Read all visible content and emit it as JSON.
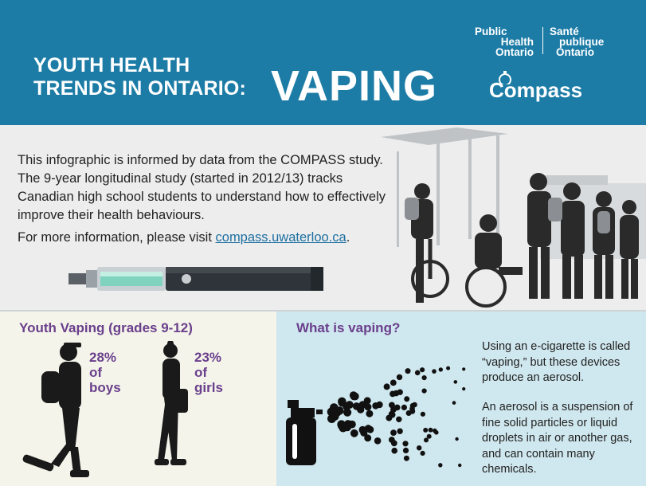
{
  "header": {
    "title_line1": "YOUTH HEALTH",
    "title_line2": "TRENDS IN ONTARIO:",
    "title_big": "VAPING",
    "partner_en": [
      "Public",
      "Health",
      "Ontario"
    ],
    "partner_fr": [
      "Santé",
      "publique",
      "Ontario"
    ],
    "compass": "Compass"
  },
  "intro": {
    "paragraph": "This infographic is informed by data from the COMPASS study. The 9-year longitudinal study (started in 2012/13) tracks Canadian high school students to understand how to effectively improve their health behaviours.",
    "more_prefix": "For more information, please visit ",
    "more_link": "compass.uwaterloo.ca",
    "more_suffix": "."
  },
  "youth": {
    "title": "Youth Vaping (grades 9-12)",
    "boys_pct": "28%",
    "boys_of": "of",
    "boys_label": "boys",
    "girls_pct": "23%",
    "girls_of": "of",
    "girls_label": "girls"
  },
  "what": {
    "title": "What is vaping?",
    "para1": "Using an e-cigarette is called “vaping,” but these devices produce an aerosol.",
    "para2": "An aerosol is a suspension of fine solid particles or liquid droplets in air or another gas, and can contain many chemicals."
  },
  "colors": {
    "header": "#1c7ca6",
    "accent": "#6a3f8c",
    "link": "#1c6fa0"
  }
}
